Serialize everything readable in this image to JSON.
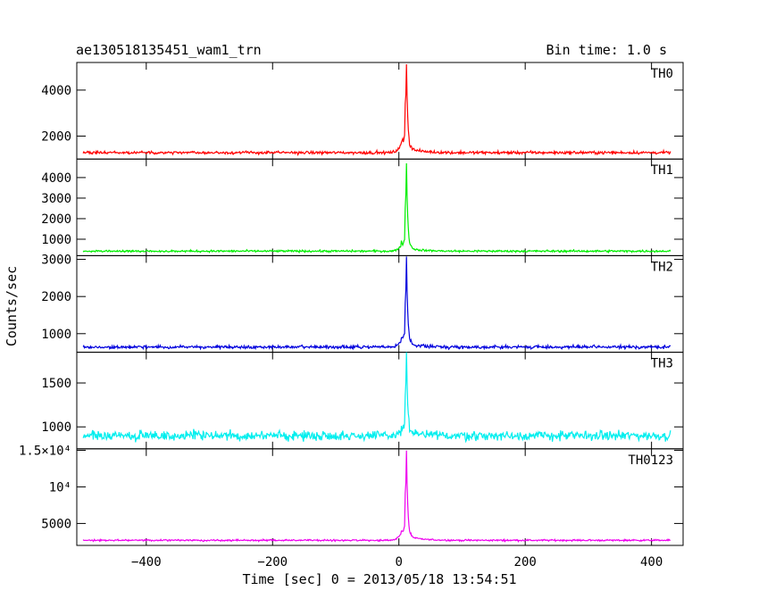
{
  "chart_data": {
    "type": "line",
    "title_left": "ae130518135451_wam1_trn",
    "title_right": "Bin time: 1.0 s",
    "xlabel": "Time [sec] 0 = 2013/05/18 13:54:51",
    "ylabel": "Counts/sec",
    "xlim": [
      -510,
      450
    ],
    "x_range": [
      -500,
      430
    ],
    "xticks": [
      -400,
      -200,
      0,
      200,
      400
    ],
    "xtick_labels": [
      "−400",
      "−200",
      "0",
      "200",
      "400"
    ],
    "grid": false,
    "panels": [
      {
        "name": "TH0",
        "color": "#ff0000",
        "ylim": [
          1000,
          5200
        ],
        "yticks": [
          2000,
          4000
        ],
        "ytick_labels": [
          "2000",
          "4000"
        ],
        "baseline": 1280,
        "noise": 45,
        "peak": 5200,
        "pre_bump": 1900
      },
      {
        "name": "TH1",
        "color": "#00ee00",
        "ylim": [
          200,
          4900
        ],
        "yticks": [
          1000,
          2000,
          3000,
          4000
        ],
        "ytick_labels": [
          "1000",
          "2000",
          "3000",
          "4000"
        ],
        "baseline": 420,
        "noise": 35,
        "peak": 4700,
        "pre_bump": 900
      },
      {
        "name": "TH2",
        "color": "#0000dd",
        "ylim": [
          500,
          3100
        ],
        "yticks": [
          1000,
          2000,
          3000
        ],
        "ytick_labels": [
          "1000",
          "2000",
          "3000"
        ],
        "baseline": 640,
        "noise": 30,
        "peak": 3050,
        "pre_bump": 950
      },
      {
        "name": "TH3",
        "color": "#00eeee",
        "ylim": [
          750,
          1850
        ],
        "yticks": [
          1000,
          1500
        ],
        "ytick_labels": [
          "1000",
          "1500"
        ],
        "baseline": 900,
        "noise": 38,
        "peak": 1840,
        "pre_bump": 1000
      },
      {
        "name": "TH0123",
        "color": "#ee00ee",
        "ylim": [
          2000,
          15200
        ],
        "yticks": [
          5000,
          10000,
          15000
        ],
        "ytick_labels": [
          "5000",
          "10⁴",
          "1.5×10⁴"
        ],
        "baseline": 2700,
        "noise": 80,
        "peak": 15000,
        "pre_bump": 4400
      }
    ]
  }
}
